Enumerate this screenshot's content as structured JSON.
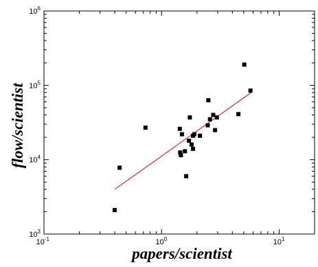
{
  "chart_data": {
    "type": "scatter",
    "title": "",
    "xlabel": "papers/scientist",
    "ylabel": "flow/scientist",
    "xscale": "log",
    "yscale": "log",
    "xlim": [
      0.1,
      20
    ],
    "ylim": [
      1000,
      1000000
    ],
    "grid": false,
    "x_ticks": [
      {
        "value": 0.1,
        "base": "10",
        "exp": "-1"
      },
      {
        "value": 1,
        "base": "10",
        "exp": "0"
      },
      {
        "value": 10,
        "base": "10",
        "exp": "1"
      }
    ],
    "y_ticks": [
      {
        "value": 1000,
        "base": "10",
        "exp": "3"
      },
      {
        "value": 10000,
        "base": "10",
        "exp": "4"
      },
      {
        "value": 100000,
        "base": "10",
        "exp": "5"
      },
      {
        "value": 1000000,
        "base": "10",
        "exp": "6"
      }
    ],
    "series": [
      {
        "kind": "points",
        "color": "#000000",
        "points": [
          [
            0.4,
            2100
          ],
          [
            0.44,
            7800
          ],
          [
            0.73,
            27000
          ],
          [
            1.43,
            26000
          ],
          [
            1.44,
            12500
          ],
          [
            1.46,
            11500
          ],
          [
            1.49,
            22000
          ],
          [
            1.58,
            13000
          ],
          [
            1.62,
            6000
          ],
          [
            1.71,
            18000
          ],
          [
            1.74,
            37000
          ],
          [
            1.8,
            16000
          ],
          [
            1.85,
            14000
          ],
          [
            1.85,
            21000
          ],
          [
            1.9,
            22000
          ],
          [
            2.12,
            21000
          ],
          [
            2.47,
            29000
          ],
          [
            2.5,
            63000
          ],
          [
            2.58,
            35000
          ],
          [
            2.75,
            40000
          ],
          [
            2.85,
            25000
          ],
          [
            2.95,
            37000
          ],
          [
            4.5,
            41000
          ],
          [
            5.05,
            190000
          ],
          [
            5.7,
            85000
          ]
        ]
      },
      {
        "kind": "fit-line",
        "color": "#e00000",
        "points": [
          [
            0.4,
            4000
          ],
          [
            5.9,
            82000
          ]
        ]
      }
    ]
  }
}
